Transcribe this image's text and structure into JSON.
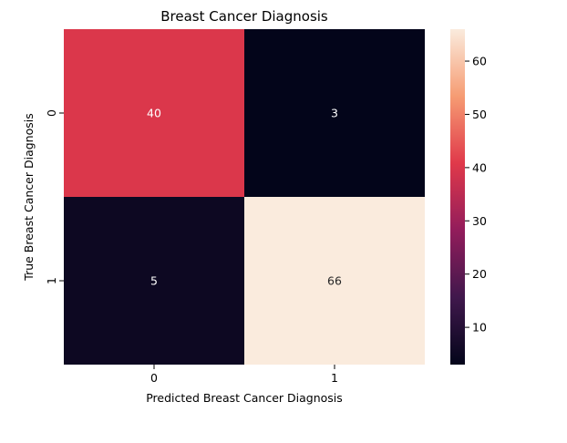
{
  "chart_data": {
    "type": "heatmap",
    "title": "Breast Cancer Diagnosis",
    "xlabel": "Predicted Breast Cancer Diagnosis",
    "ylabel": "True Breast Cancer Diagnosis",
    "x_categories": [
      "0",
      "1"
    ],
    "y_categories": [
      "0",
      "1"
    ],
    "values": [
      [
        40,
        3
      ],
      [
        5,
        66
      ]
    ],
    "annotations": [
      "40",
      "3",
      "5",
      "66"
    ],
    "colormap": "rocket",
    "colorbar": {
      "range": [
        3,
        66
      ],
      "ticks": [
        10,
        20,
        30,
        40,
        50,
        60
      ],
      "tick_labels": [
        "10",
        "20",
        "30",
        "40",
        "50",
        "60"
      ]
    },
    "grid": false,
    "legend": "colorbar-right"
  }
}
